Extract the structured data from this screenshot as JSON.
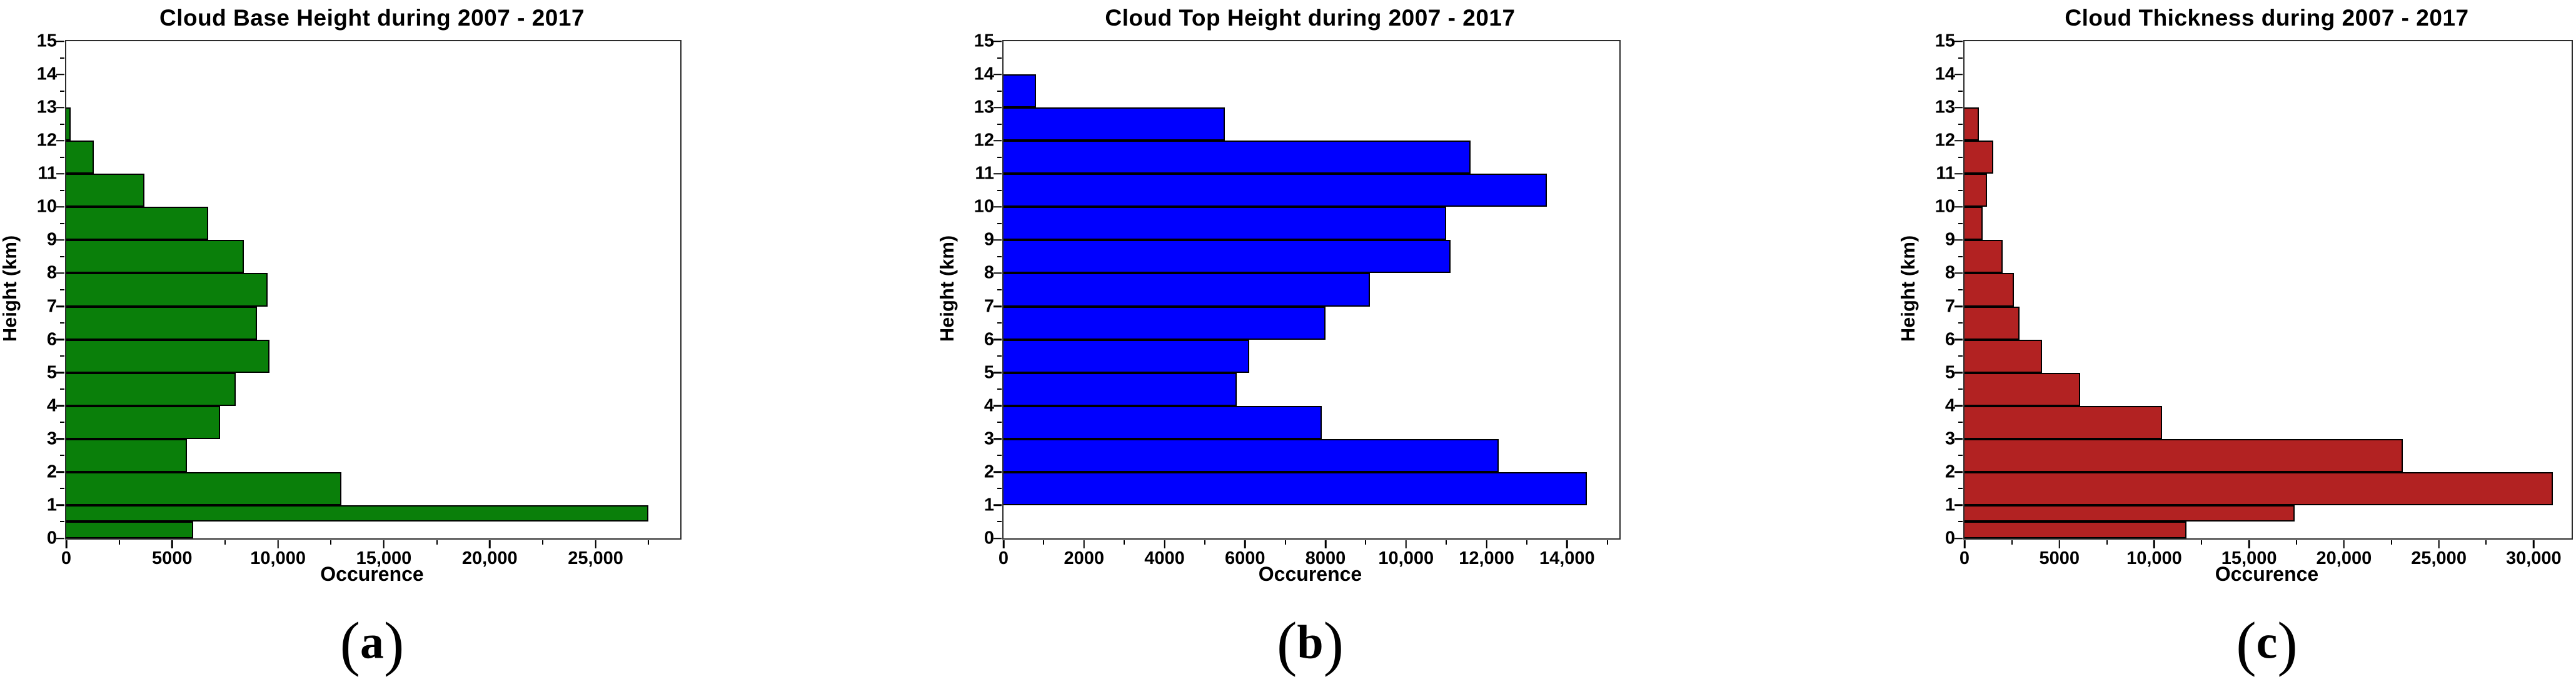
{
  "chart_data": [
    {
      "type": "bar",
      "orientation": "horizontal",
      "title": "Cloud Base Height during 2007 - 2017",
      "xlabel": "Occurence",
      "ylabel": "Height (km)",
      "caption": {
        "pre": "(",
        "letter": "a",
        "post": ")"
      },
      "bar_color": "#0a7f0a",
      "grid": false,
      "xlim": [
        0,
        29000
      ],
      "ylim": [
        0,
        15
      ],
      "xticks": [
        {
          "v": 0,
          "label": "0"
        },
        {
          "v": 5000,
          "label": "5000"
        },
        {
          "v": 10000,
          "label": "10,000"
        },
        {
          "v": 15000,
          "label": "15,000"
        },
        {
          "v": 20000,
          "label": "20,000"
        },
        {
          "v": 25000,
          "label": "25,000"
        }
      ],
      "yticks": [
        0,
        1,
        2,
        3,
        4,
        5,
        6,
        7,
        8,
        9,
        10,
        11,
        12,
        13,
        14,
        15
      ],
      "bins": [
        {
          "y0": 0,
          "y1": 0.5,
          "count": 6000
        },
        {
          "y0": 0.5,
          "y1": 1,
          "count": 27500
        },
        {
          "y0": 1,
          "y1": 2,
          "count": 13000
        },
        {
          "y0": 2,
          "y1": 3,
          "count": 5700
        },
        {
          "y0": 3,
          "y1": 4,
          "count": 7250
        },
        {
          "y0": 4,
          "y1": 5,
          "count": 8000
        },
        {
          "y0": 5,
          "y1": 6,
          "count": 9600
        },
        {
          "y0": 6,
          "y1": 7,
          "count": 9000
        },
        {
          "y0": 7,
          "y1": 8,
          "count": 9500
        },
        {
          "y0": 8,
          "y1": 9,
          "count": 8400
        },
        {
          "y0": 9,
          "y1": 10,
          "count": 6700
        },
        {
          "y0": 10,
          "y1": 11,
          "count": 3700
        },
        {
          "y0": 11,
          "y1": 12,
          "count": 1300
        },
        {
          "y0": 12,
          "y1": 13,
          "count": 200
        }
      ]
    },
    {
      "type": "bar",
      "orientation": "horizontal",
      "title": "Cloud Top Height during 2007 - 2017",
      "xlabel": "Occurence",
      "ylabel": "Height (km)",
      "caption": {
        "pre": "(",
        "letter": "b",
        "post": ")"
      },
      "bar_color": "#0000ff",
      "grid": false,
      "xlim": [
        0,
        15300
      ],
      "ylim": [
        0,
        15
      ],
      "xticks": [
        {
          "v": 0,
          "label": "0"
        },
        {
          "v": 2000,
          "label": "2000"
        },
        {
          "v": 4000,
          "label": "4000"
        },
        {
          "v": 6000,
          "label": "6000"
        },
        {
          "v": 8000,
          "label": "8000"
        },
        {
          "v": 10000,
          "label": "10,000"
        },
        {
          "v": 12000,
          "label": "12,000"
        },
        {
          "v": 14000,
          "label": "14,000"
        }
      ],
      "yticks": [
        0,
        1,
        2,
        3,
        4,
        5,
        6,
        7,
        8,
        9,
        10,
        11,
        12,
        13,
        14,
        15
      ],
      "bins": [
        {
          "y0": 1,
          "y1": 2,
          "count": 14500
        },
        {
          "y0": 2,
          "y1": 3,
          "count": 12300
        },
        {
          "y0": 3,
          "y1": 4,
          "count": 7900
        },
        {
          "y0": 4,
          "y1": 5,
          "count": 5800
        },
        {
          "y0": 5,
          "y1": 6,
          "count": 6100
        },
        {
          "y0": 6,
          "y1": 7,
          "count": 8000
        },
        {
          "y0": 7,
          "y1": 8,
          "count": 9100
        },
        {
          "y0": 8,
          "y1": 9,
          "count": 11100
        },
        {
          "y0": 9,
          "y1": 10,
          "count": 11000
        },
        {
          "y0": 10,
          "y1": 11,
          "count": 13500
        },
        {
          "y0": 11,
          "y1": 12,
          "count": 11600
        },
        {
          "y0": 12,
          "y1": 13,
          "count": 5500
        },
        {
          "y0": 13,
          "y1": 14,
          "count": 800
        }
      ]
    },
    {
      "type": "bar",
      "orientation": "horizontal",
      "title": "Cloud Thickness during 2007 - 2017",
      "xlabel": "Occurence",
      "ylabel": "Height (km)",
      "caption": {
        "pre": "(",
        "letter": "c",
        "post": ")"
      },
      "bar_color": "#b22222",
      "grid": false,
      "xlim": [
        0,
        32000
      ],
      "ylim": [
        0,
        15
      ],
      "xticks": [
        {
          "v": 0,
          "label": "0"
        },
        {
          "v": 5000,
          "label": "5000"
        },
        {
          "v": 10000,
          "label": "10,000"
        },
        {
          "v": 15000,
          "label": "15,000"
        },
        {
          "v": 20000,
          "label": "20,000"
        },
        {
          "v": 25000,
          "label": "25,000"
        },
        {
          "v": 30000,
          "label": "30,000"
        }
      ],
      "yticks": [
        0,
        1,
        2,
        3,
        4,
        5,
        6,
        7,
        8,
        9,
        10,
        11,
        12,
        13,
        14,
        15
      ],
      "bins": [
        {
          "y0": 0,
          "y1": 0.5,
          "count": 11700
        },
        {
          "y0": 0.5,
          "y1": 1,
          "count": 17400
        },
        {
          "y0": 1,
          "y1": 2,
          "count": 31000
        },
        {
          "y0": 2,
          "y1": 3,
          "count": 23100
        },
        {
          "y0": 3,
          "y1": 4,
          "count": 10400
        },
        {
          "y0": 4,
          "y1": 5,
          "count": 6100
        },
        {
          "y0": 5,
          "y1": 6,
          "count": 4100
        },
        {
          "y0": 6,
          "y1": 7,
          "count": 2900
        },
        {
          "y0": 7,
          "y1": 8,
          "count": 2600
        },
        {
          "y0": 8,
          "y1": 9,
          "count": 2000
        },
        {
          "y0": 9,
          "y1": 10,
          "count": 950
        },
        {
          "y0": 10,
          "y1": 11,
          "count": 1200
        },
        {
          "y0": 11,
          "y1": 12,
          "count": 1500
        },
        {
          "y0": 12,
          "y1": 13,
          "count": 750
        }
      ]
    }
  ]
}
